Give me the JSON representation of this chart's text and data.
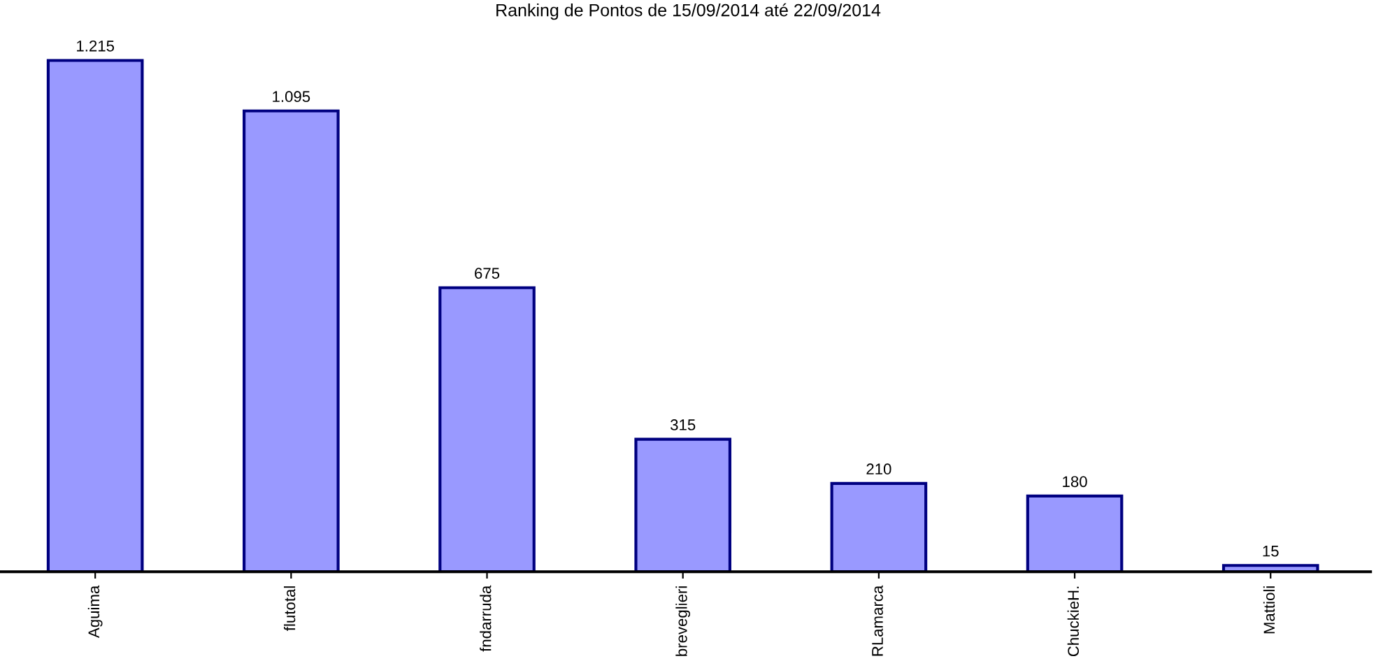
{
  "chart_data": {
    "type": "bar",
    "title": "Ranking de Pontos de 15/09/2014 até 22/09/2014",
    "categories": [
      "Aguima",
      "flutotal",
      "fndarruda",
      "breveglieri",
      "RLamarca",
      "ChuckieH.",
      "Mattioli"
    ],
    "series": [
      {
        "color": "#9999ff",
        "values": [
          1215,
          1095,
          675,
          315,
          210,
          180,
          15
        ],
        "value_labels": [
          "1.215",
          "1.095",
          "675",
          "315",
          "210",
          "180",
          "15"
        ]
      }
    ]
  }
}
